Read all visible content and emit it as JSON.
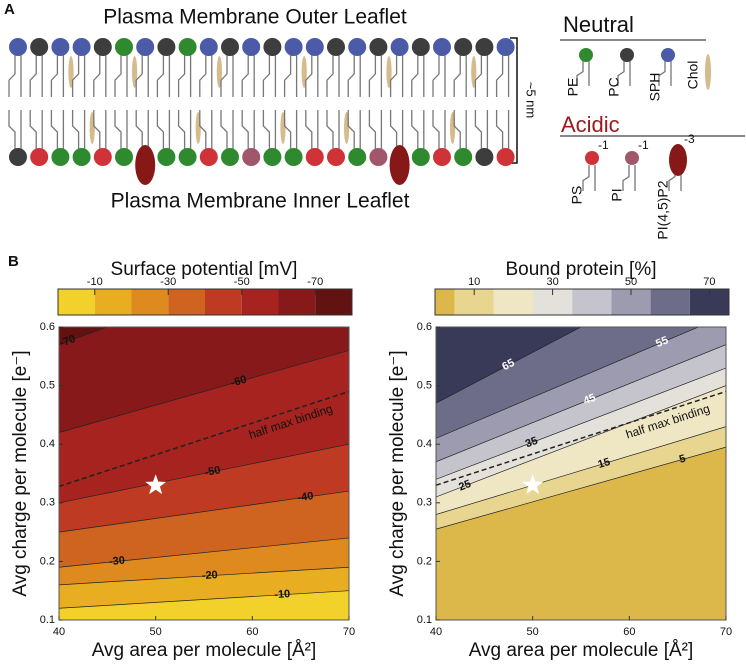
{
  "panel_a": {
    "label": "A",
    "outer_title": "Plasma Membrane Outer Leaflet",
    "inner_title": "Plasma Membrane Inner Leaflet",
    "thickness": "~5 nm",
    "neutral": {
      "title": "Neutral",
      "lipids": [
        {
          "name": "PE",
          "color": "#2f8a2f"
        },
        {
          "name": "PC",
          "color": "#3d3d3d"
        },
        {
          "name": "SPH",
          "color": "#4b5ba8"
        },
        {
          "name": "Chol",
          "color": "#d6bb8c"
        }
      ]
    },
    "acidic": {
      "title": "Acidic",
      "lipids": [
        {
          "name": "PS",
          "charge": -1,
          "color": "#cf3338"
        },
        {
          "name": "PI",
          "charge": -1,
          "color": "#a0576b"
        },
        {
          "name": "PI(4,5)P2",
          "charge": -3,
          "color": "#861818"
        }
      ]
    }
  },
  "panel_b": {
    "label": "B",
    "plots": [
      {
        "title": "Surface potential [mV]",
        "colorbar": {
          "lim": [
            0,
            -80
          ],
          "ticks": [
            -10,
            -30,
            -50,
            -70
          ],
          "colors": [
            "#f1d12a",
            "#e9ad22",
            "#de8a1f",
            "#cf6320",
            "#be3a22",
            "#a6231f",
            "#87191a",
            "#621210"
          ]
        },
        "xlabel": "Avg area per molecule [Å²]",
        "ylabel": "Avg charge per molecule [e⁻]",
        "xlim": [
          40,
          70
        ],
        "ylim": [
          0.1,
          0.6
        ],
        "xticks": [
          40,
          50,
          60,
          70
        ],
        "yticks": [
          0.1,
          0.2,
          0.3,
          0.4,
          0.5,
          0.6
        ],
        "contours": [
          {
            "level": -10,
            "q": [
              0.12,
              0.15
            ]
          },
          {
            "level": -20,
            "q": [
              0.16,
              0.19
            ]
          },
          {
            "level": -30,
            "q": [
              0.19,
              0.24
            ]
          },
          {
            "level": -40,
            "q": [
              0.25,
              0.32
            ]
          },
          {
            "level": -50,
            "q": [
              0.3,
              0.4
            ]
          },
          {
            "level": -60,
            "q": [
              0.42,
              0.56
            ]
          },
          {
            "level": -70,
            "q": [
              0.57,
              0.75
            ]
          }
        ],
        "half_max": {
          "label": "half max binding",
          "q": [
            0.328,
            0.49
          ]
        },
        "star": {
          "x": 50,
          "y": 0.33
        }
      },
      {
        "title": "Bound protein [%]",
        "colorbar": {
          "lim": [
            0,
            75
          ],
          "ticks": [
            10,
            30,
            50,
            70
          ],
          "colors": [
            "#dcb84a",
            "#e8d690",
            "#efe7c4",
            "#e3e1da",
            "#c5c4cd",
            "#9c9baf",
            "#6e6d89",
            "#383a58"
          ]
        },
        "xlabel": "Avg area per molecule [Å²]",
        "ylabel": "Avg charge per molecule [e⁻]",
        "xlim": [
          40,
          70
        ],
        "ylim": [
          0.1,
          0.6
        ],
        "xticks": [
          40,
          50,
          60,
          70
        ],
        "yticks": [
          0.1,
          0.2,
          0.3,
          0.4,
          0.5,
          0.6
        ],
        "contours": [
          {
            "level": 5,
            "q": [
              0.255,
              0.395
            ]
          },
          {
            "level": 15,
            "q": [
              0.28,
              0.43
            ]
          },
          {
            "level": 25,
            "q": [
              0.31,
              0.5
            ]
          },
          {
            "level": 35,
            "q": [
              0.34,
              0.53
            ]
          },
          {
            "level": 45,
            "q": [
              0.37,
              0.57
            ]
          },
          {
            "level": 55,
            "q": [
              0.41,
              0.62
            ]
          },
          {
            "level": 65,
            "q": [
              0.47,
              0.73
            ]
          }
        ],
        "half_max": {
          "label": "half max binding",
          "q": [
            0.33,
            0.49
          ]
        },
        "star": {
          "x": 50,
          "y": 0.33
        }
      }
    ]
  }
}
